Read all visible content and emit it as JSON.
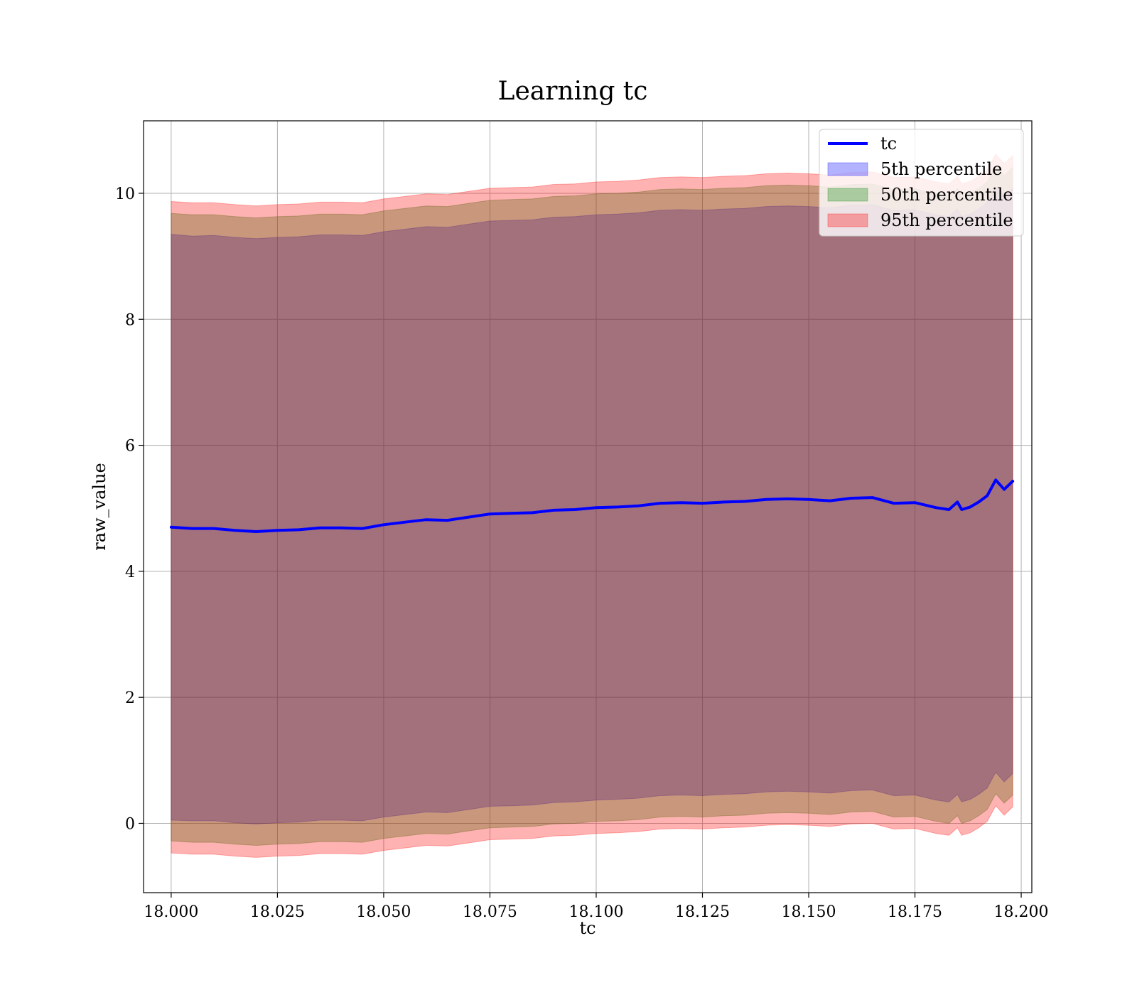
{
  "chart_data": {
    "type": "area",
    "title": "Learning tc",
    "xlabel": "tc",
    "ylabel": "raw_value",
    "xlim": [
      17.9935,
      18.2025
    ],
    "ylim": [
      -1.1,
      11.15
    ],
    "xticks": [
      18.0,
      18.025,
      18.05,
      18.075,
      18.1,
      18.125,
      18.15,
      18.175,
      18.2
    ],
    "xtick_labels": [
      "18.000",
      "18.025",
      "18.050",
      "18.075",
      "18.100",
      "18.125",
      "18.150",
      "18.175",
      "18.200"
    ],
    "yticks": [
      0,
      2,
      4,
      6,
      8,
      10
    ],
    "ytick_labels": [
      "0",
      "2",
      "4",
      "6",
      "8",
      "10"
    ],
    "grid": true,
    "legend_position": "top-right",
    "legend": [
      {
        "label": "tc",
        "kind": "line",
        "color": "#0000ff"
      },
      {
        "label": "5th percentile",
        "kind": "patch",
        "color": "#0000ff"
      },
      {
        "label": "50th percentile",
        "kind": "patch",
        "color": "#008000"
      },
      {
        "label": "95th percentile",
        "kind": "patch",
        "color": "#ff0000"
      }
    ],
    "x": [
      18.0,
      18.005,
      18.01,
      18.015,
      18.02,
      18.025,
      18.03,
      18.035,
      18.04,
      18.045,
      18.05,
      18.055,
      18.06,
      18.065,
      18.07,
      18.075,
      18.08,
      18.085,
      18.09,
      18.095,
      18.1,
      18.105,
      18.11,
      18.115,
      18.12,
      18.125,
      18.13,
      18.135,
      18.14,
      18.145,
      18.15,
      18.155,
      18.16,
      18.165,
      18.17,
      18.175,
      18.18,
      18.183,
      18.185,
      18.186,
      18.188,
      18.19,
      18.192,
      18.194,
      18.196,
      18.198
    ],
    "series": [
      {
        "name": "tc",
        "color": "#0000ff",
        "mean": [
          4.7,
          4.68,
          4.68,
          4.65,
          4.63,
          4.65,
          4.66,
          4.69,
          4.69,
          4.68,
          4.74,
          4.78,
          4.82,
          4.81,
          4.86,
          4.91,
          4.92,
          4.93,
          4.97,
          4.98,
          5.01,
          5.02,
          5.04,
          5.08,
          5.09,
          5.08,
          5.1,
          5.11,
          5.14,
          5.15,
          5.14,
          5.12,
          5.16,
          5.17,
          5.08,
          5.09,
          5.01,
          4.98,
          5.1,
          4.98,
          5.02,
          5.1,
          5.2,
          5.45,
          5.3,
          5.43
        ]
      },
      {
        "name": "5th percentile",
        "color": "#0000ff",
        "upper": [
          9.35,
          9.32,
          9.33,
          9.3,
          9.28,
          9.3,
          9.31,
          9.34,
          9.34,
          9.33,
          9.39,
          9.43,
          9.47,
          9.46,
          9.51,
          9.56,
          9.57,
          9.58,
          9.62,
          9.63,
          9.66,
          9.67,
          9.69,
          9.73,
          9.74,
          9.73,
          9.75,
          9.76,
          9.79,
          9.8,
          9.79,
          9.77,
          9.81,
          9.82,
          9.73,
          9.74,
          9.66,
          9.63,
          9.75,
          9.63,
          9.67,
          9.75,
          9.85,
          10.1,
          9.95,
          10.08
        ],
        "lower": [
          0.05,
          0.04,
          0.04,
          0.01,
          -0.01,
          0.01,
          0.02,
          0.05,
          0.05,
          0.04,
          0.1,
          0.14,
          0.18,
          0.17,
          0.22,
          0.27,
          0.28,
          0.29,
          0.33,
          0.34,
          0.37,
          0.38,
          0.4,
          0.44,
          0.45,
          0.44,
          0.46,
          0.47,
          0.5,
          0.51,
          0.5,
          0.48,
          0.52,
          0.53,
          0.44,
          0.45,
          0.37,
          0.34,
          0.46,
          0.34,
          0.38,
          0.46,
          0.56,
          0.81,
          0.66,
          0.79
        ]
      },
      {
        "name": "50th percentile",
        "color": "#008000",
        "upper": [
          9.68,
          9.66,
          9.66,
          9.63,
          9.61,
          9.63,
          9.64,
          9.67,
          9.67,
          9.66,
          9.72,
          9.76,
          9.8,
          9.79,
          9.84,
          9.89,
          9.9,
          9.91,
          9.95,
          9.96,
          9.99,
          10.0,
          10.02,
          10.06,
          10.07,
          10.06,
          10.08,
          10.09,
          10.12,
          10.13,
          10.12,
          10.1,
          10.14,
          10.15,
          10.06,
          10.07,
          9.99,
          9.96,
          10.08,
          9.96,
          10.0,
          10.08,
          10.18,
          10.43,
          10.28,
          10.41
        ],
        "lower": [
          -0.28,
          -0.3,
          -0.3,
          -0.33,
          -0.35,
          -0.33,
          -0.32,
          -0.29,
          -0.29,
          -0.3,
          -0.24,
          -0.2,
          -0.16,
          -0.17,
          -0.12,
          -0.07,
          -0.06,
          -0.05,
          -0.01,
          0.0,
          0.03,
          0.04,
          0.06,
          0.1,
          0.11,
          0.1,
          0.12,
          0.13,
          0.16,
          0.17,
          0.16,
          0.14,
          0.18,
          0.19,
          0.1,
          0.11,
          0.03,
          0.0,
          0.12,
          0.0,
          0.04,
          0.12,
          0.22,
          0.47,
          0.32,
          0.45
        ]
      },
      {
        "name": "95th percentile",
        "color": "#ff0000",
        "upper": [
          9.87,
          9.85,
          9.85,
          9.82,
          9.8,
          9.82,
          9.83,
          9.86,
          9.86,
          9.85,
          9.91,
          9.95,
          9.99,
          9.98,
          10.03,
          10.08,
          10.09,
          10.1,
          10.14,
          10.15,
          10.18,
          10.19,
          10.21,
          10.25,
          10.26,
          10.25,
          10.27,
          10.28,
          10.31,
          10.32,
          10.31,
          10.29,
          10.33,
          10.34,
          10.25,
          10.26,
          10.18,
          10.15,
          10.27,
          10.15,
          10.19,
          10.27,
          10.37,
          10.62,
          10.47,
          10.6
        ],
        "lower": [
          -0.47,
          -0.49,
          -0.49,
          -0.52,
          -0.54,
          -0.52,
          -0.51,
          -0.48,
          -0.48,
          -0.49,
          -0.43,
          -0.39,
          -0.35,
          -0.36,
          -0.31,
          -0.26,
          -0.25,
          -0.24,
          -0.2,
          -0.19,
          -0.16,
          -0.15,
          -0.13,
          -0.09,
          -0.08,
          -0.09,
          -0.07,
          -0.06,
          -0.03,
          -0.02,
          -0.03,
          -0.05,
          -0.01,
          0.0,
          -0.09,
          -0.08,
          -0.16,
          -0.19,
          -0.07,
          -0.19,
          -0.15,
          -0.07,
          0.03,
          0.28,
          0.13,
          0.26
        ]
      }
    ]
  }
}
